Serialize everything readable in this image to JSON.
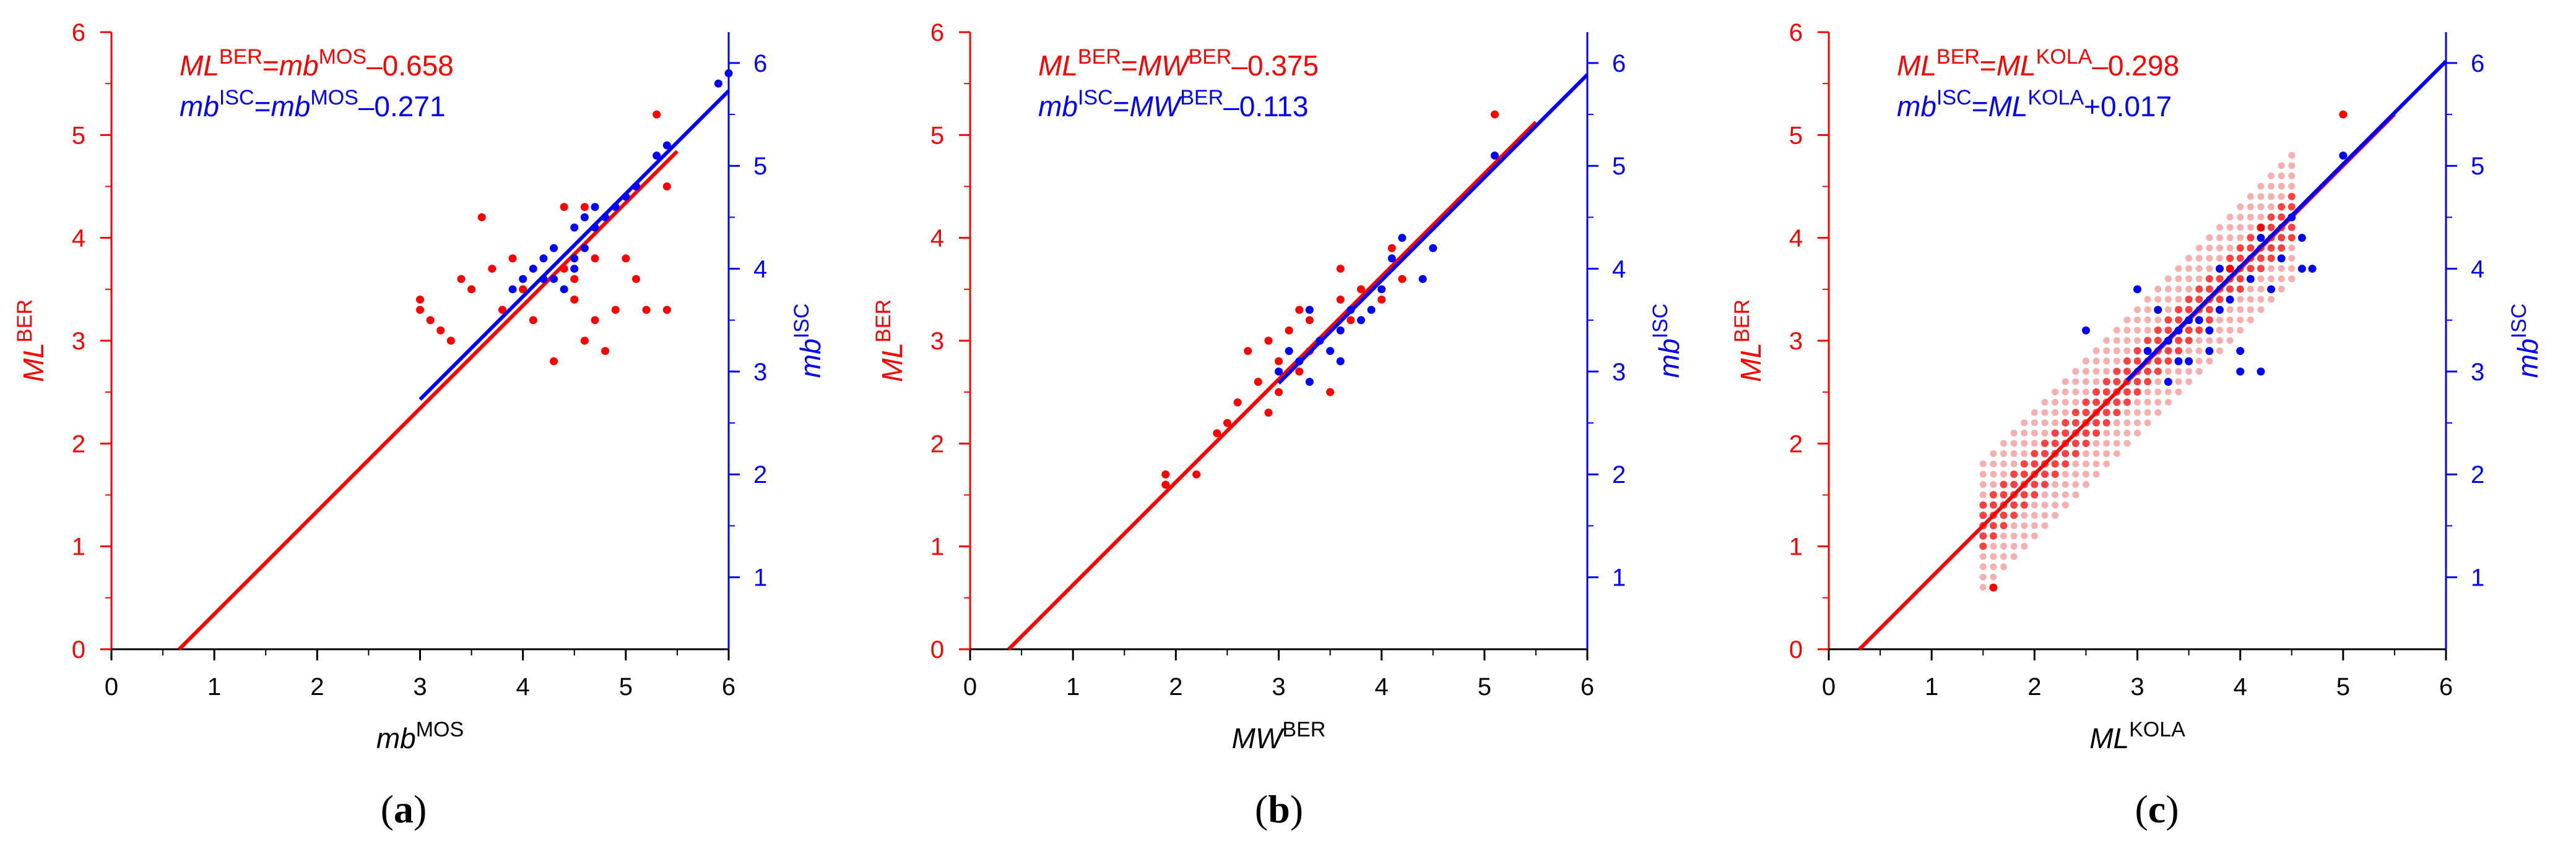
{
  "colors": {
    "ber": "#ff0000",
    "isc": "#0000ff",
    "ber_light": "#f4a6a6",
    "axis": "#000000"
  },
  "chart_data": [
    {
      "type": "scatter",
      "panel_label": "a",
      "xlabel": {
        "base": "mb",
        "sup": "MOS"
      },
      "ylabel_left": {
        "base": "ML",
        "sup": "BER"
      },
      "ylabel_right": {
        "base": "mb",
        "sup": "ISC"
      },
      "xlim": [
        0,
        6
      ],
      "ylim": [
        0,
        6
      ],
      "y2lim": [
        0.3,
        6.3
      ],
      "x_ticks": [
        "0",
        "1",
        "2",
        "3",
        "4",
        "5",
        "6"
      ],
      "y_ticks": [
        "0",
        "1",
        "2",
        "3",
        "4",
        "5",
        "6"
      ],
      "y2_ticks": [
        "1",
        "2",
        "3",
        "4",
        "5",
        "6"
      ],
      "equations": [
        {
          "color": "ber",
          "parts": [
            [
              "ML",
              "i"
            ],
            [
              "BER",
              "sup"
            ],
            [
              "=",
              ""
            ],
            [
              "mb",
              "i"
            ],
            [
              "MOS",
              "sup"
            ],
            [
              "–0.658",
              ""
            ]
          ]
        },
        {
          "color": "isc",
          "parts": [
            [
              "mb",
              "i"
            ],
            [
              "ISC",
              "sup"
            ],
            [
              "=",
              ""
            ],
            [
              "mb",
              "i"
            ],
            [
              "MOS",
              "sup"
            ],
            [
              "–0.271",
              ""
            ]
          ]
        }
      ],
      "series": [
        {
          "name": "ML BER",
          "color": "ber",
          "axis": "left",
          "points": [
            [
              3.0,
              3.3
            ],
            [
              3.1,
              3.2
            ],
            [
              3.0,
              3.4
            ],
            [
              3.2,
              3.1
            ],
            [
              3.3,
              3.0
            ],
            [
              3.4,
              3.6
            ],
            [
              3.5,
              3.5
            ],
            [
              3.6,
              4.2
            ],
            [
              3.7,
              3.7
            ],
            [
              3.8,
              3.3
            ],
            [
              3.9,
              3.8
            ],
            [
              4.0,
              3.5
            ],
            [
              4.1,
              3.2
            ],
            [
              4.2,
              3.6
            ],
            [
              4.3,
              2.8
            ],
            [
              4.4,
              4.3
            ],
            [
              4.5,
              3.4
            ],
            [
              4.6,
              3.0
            ],
            [
              4.7,
              3.2
            ],
            [
              4.8,
              2.9
            ],
            [
              4.9,
              3.3
            ],
            [
              5.0,
              3.8
            ],
            [
              5.1,
              4.5
            ],
            [
              5.3,
              5.2
            ],
            [
              5.4,
              4.5
            ],
            [
              4.7,
              3.8
            ],
            [
              4.5,
              3.6
            ],
            [
              4.4,
              3.7
            ],
            [
              4.6,
              4.3
            ],
            [
              5.1,
              3.6
            ],
            [
              5.2,
              3.3
            ],
            [
              5.4,
              3.3
            ]
          ],
          "fit": {
            "intercept": -0.658,
            "x": [
              0.658,
              5.5
            ]
          }
        },
        {
          "name": "mb ISC",
          "color": "isc",
          "axis": "right",
          "points": [
            [
              3.9,
              3.8
            ],
            [
              4.0,
              3.9
            ],
            [
              4.1,
              4.0
            ],
            [
              4.2,
              4.1
            ],
            [
              4.3,
              3.9
            ],
            [
              4.4,
              3.8
            ],
            [
              4.5,
              4.1
            ],
            [
              4.6,
              4.2
            ],
            [
              4.7,
              4.4
            ],
            [
              4.8,
              4.5
            ],
            [
              4.9,
              4.6
            ],
            [
              5.0,
              4.7
            ],
            [
              5.1,
              4.8
            ],
            [
              5.3,
              5.1
            ],
            [
              5.4,
              5.2
            ],
            [
              5.9,
              5.8
            ],
            [
              6.0,
              5.9
            ],
            [
              4.3,
              4.2
            ],
            [
              4.5,
              4.4
            ],
            [
              4.6,
              4.5
            ],
            [
              4.7,
              4.6
            ],
            [
              4.2,
              3.9
            ],
            [
              4.5,
              4.0
            ]
          ],
          "fit": {
            "intercept": -0.271,
            "x": [
              3.0,
              6.0
            ]
          }
        }
      ]
    },
    {
      "type": "scatter",
      "panel_label": "b",
      "xlabel": {
        "base": "MW",
        "sup": "BER"
      },
      "ylabel_left": {
        "base": "ML",
        "sup": "BER"
      },
      "ylabel_right": {
        "base": "mb",
        "sup": "ISC"
      },
      "xlim": [
        0,
        6
      ],
      "ylim": [
        0,
        6
      ],
      "y2lim": [
        0.3,
        6.3
      ],
      "x_ticks": [
        "0",
        "1",
        "2",
        "3",
        "4",
        "5",
        "6"
      ],
      "y_ticks": [
        "0",
        "1",
        "2",
        "3",
        "4",
        "5",
        "6"
      ],
      "y2_ticks": [
        "1",
        "2",
        "3",
        "4",
        "5",
        "6"
      ],
      "equations": [
        {
          "color": "ber",
          "parts": [
            [
              "ML",
              "i"
            ],
            [
              "BER",
              "sup"
            ],
            [
              "=",
              ""
            ],
            [
              "MW",
              "i"
            ],
            [
              "BER",
              "sup"
            ],
            [
              "–0.375",
              ""
            ]
          ]
        },
        {
          "color": "isc",
          "parts": [
            [
              "mb",
              "i"
            ],
            [
              "ISC",
              "sup"
            ],
            [
              "=",
              ""
            ],
            [
              "MW",
              "i"
            ],
            [
              "BER",
              "sup"
            ],
            [
              "–0.113",
              ""
            ]
          ]
        }
      ],
      "series": [
        {
          "name": "ML BER",
          "color": "ber",
          "axis": "left",
          "points": [
            [
              1.9,
              1.7
            ],
            [
              1.9,
              1.6
            ],
            [
              2.2,
              1.7
            ],
            [
              2.4,
              2.1
            ],
            [
              2.5,
              2.2
            ],
            [
              2.6,
              2.4
            ],
            [
              2.7,
              2.9
            ],
            [
              2.8,
              2.6
            ],
            [
              2.9,
              3.0
            ],
            [
              3.0,
              2.8
            ],
            [
              3.1,
              3.1
            ],
            [
              3.2,
              3.3
            ],
            [
              3.3,
              2.9
            ],
            [
              3.4,
              3.0
            ],
            [
              3.5,
              2.5
            ],
            [
              3.6,
              3.4
            ],
            [
              3.6,
              3.7
            ],
            [
              3.7,
              3.2
            ],
            [
              3.8,
              3.5
            ],
            [
              4.0,
              3.4
            ],
            [
              4.1,
              3.9
            ],
            [
              4.2,
              3.6
            ],
            [
              5.1,
              5.2
            ],
            [
              3.3,
              3.2
            ],
            [
              3.0,
              2.5
            ],
            [
              2.9,
              2.3
            ],
            [
              3.2,
              2.7
            ]
          ],
          "fit": {
            "intercept": -0.375,
            "x": [
              0.375,
              5.5
            ]
          }
        },
        {
          "name": "mb ISC",
          "color": "isc",
          "axis": "right",
          "points": [
            [
              3.0,
              3.0
            ],
            [
              3.1,
              3.2
            ],
            [
              3.2,
              3.1
            ],
            [
              3.3,
              2.9
            ],
            [
              3.4,
              3.3
            ],
            [
              3.5,
              3.2
            ],
            [
              3.6,
              3.4
            ],
            [
              3.7,
              3.6
            ],
            [
              3.8,
              3.5
            ],
            [
              3.9,
              3.6
            ],
            [
              4.0,
              3.8
            ],
            [
              4.1,
              4.1
            ],
            [
              4.2,
              4.3
            ],
            [
              4.4,
              3.9
            ],
            [
              4.5,
              4.2
            ],
            [
              5.1,
              5.1
            ],
            [
              3.3,
              3.6
            ],
            [
              3.6,
              3.1
            ]
          ],
          "fit": {
            "intercept": -0.113,
            "x": [
              3.0,
              6.0
            ]
          }
        }
      ]
    },
    {
      "type": "scatter",
      "panel_label": "c",
      "xlabel": {
        "base": "ML",
        "sup": "KOLA"
      },
      "ylabel_left": {
        "base": "ML",
        "sup": "BER"
      },
      "ylabel_right": {
        "base": "mb",
        "sup": "ISC"
      },
      "xlim": [
        0,
        6
      ],
      "ylim": [
        0,
        6
      ],
      "y2lim": [
        0.3,
        6.3
      ],
      "x_ticks": [
        "0",
        "1",
        "2",
        "3",
        "4",
        "5",
        "6"
      ],
      "y_ticks": [
        "0",
        "1",
        "2",
        "3",
        "4",
        "5",
        "6"
      ],
      "y2_ticks": [
        "1",
        "2",
        "3",
        "4",
        "5",
        "6"
      ],
      "equations": [
        {
          "color": "ber",
          "parts": [
            [
              "ML",
              "i"
            ],
            [
              "BER",
              "sup"
            ],
            [
              "=",
              ""
            ],
            [
              "ML",
              "i"
            ],
            [
              "KOLA",
              "sup"
            ],
            [
              "–0.298",
              ""
            ]
          ]
        },
        {
          "color": "isc",
          "parts": [
            [
              "mb",
              "i"
            ],
            [
              "ISC",
              "sup"
            ],
            [
              "=",
              ""
            ],
            [
              "ML",
              "i"
            ],
            [
              "KOLA",
              "sup"
            ],
            [
              "+0.017",
              ""
            ]
          ]
        }
      ],
      "dense_cloud": {
        "color": "ber",
        "axis": "left",
        "x_range": [
          1.5,
          4.5
        ],
        "x_step": 0.1,
        "y_step": 0.1,
        "offset": -0.298,
        "spread": 0.55,
        "core": 0.22
      },
      "series": [
        {
          "name": "ML BER",
          "color": "ber",
          "axis": "left",
          "points": [
            [
              1.6,
              0.6
            ],
            [
              5.0,
              5.2
            ],
            [
              4.2,
              4.1
            ],
            [
              3.9,
              3.7
            ]
          ],
          "fit": {
            "intercept": -0.298,
            "x": [
              0.298,
              5.5
            ]
          }
        },
        {
          "name": "mb ISC",
          "color": "isc",
          "axis": "right",
          "points": [
            [
              2.5,
              3.4
            ],
            [
              3.0,
              3.8
            ],
            [
              3.1,
              3.2
            ],
            [
              3.2,
              3.6
            ],
            [
              3.3,
              3.3
            ],
            [
              3.4,
              3.4
            ],
            [
              3.5,
              3.1
            ],
            [
              3.6,
              3.5
            ],
            [
              3.7,
              3.4
            ],
            [
              3.8,
              4.0
            ],
            [
              3.9,
              3.7
            ],
            [
              4.0,
              3.2
            ],
            [
              4.1,
              3.9
            ],
            [
              4.2,
              4.3
            ],
            [
              4.3,
              3.8
            ],
            [
              4.4,
              4.1
            ],
            [
              4.5,
              4.5
            ],
            [
              4.6,
              4.0
            ],
            [
              4.7,
              4.0
            ],
            [
              4.2,
              3.0
            ],
            [
              4.0,
              3.0
            ],
            [
              3.3,
              2.9
            ],
            [
              3.8,
              3.6
            ],
            [
              4.6,
              4.3
            ],
            [
              5.0,
              5.1
            ],
            [
              3.4,
              3.1
            ],
            [
              3.7,
              3.2
            ],
            [
              3.5,
              3.5
            ]
          ],
          "fit": {
            "intercept": 0.017,
            "x": [
              2.9,
              6.0
            ]
          }
        }
      ]
    }
  ]
}
